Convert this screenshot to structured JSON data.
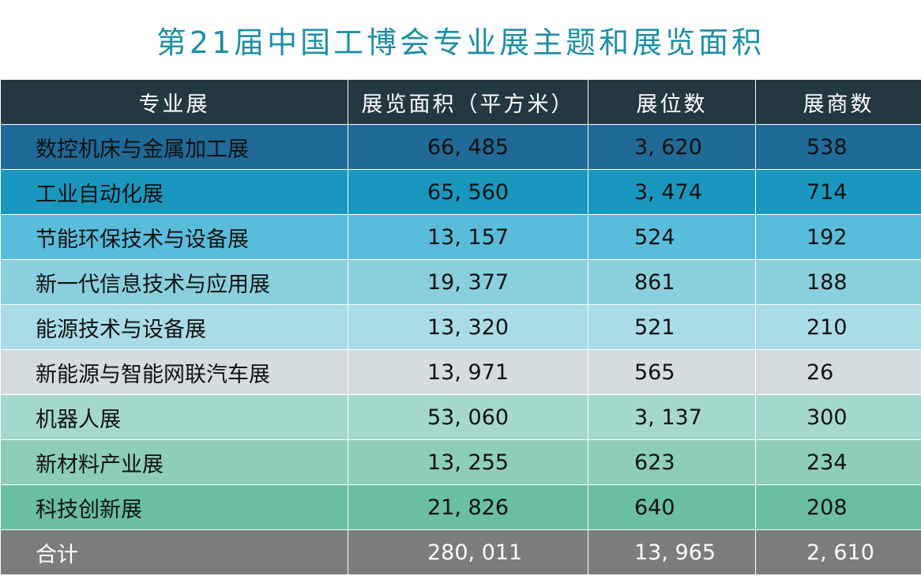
{
  "title": "第21届中国工博会专业展主题和展览面积",
  "headers": [
    "专业展",
    "展览面积（平方米）",
    "展位数",
    "展商数"
  ],
  "rows": [
    {
      "name": "数控机床与金属加工展",
      "area": "66, 485",
      "booths": "3, 620",
      "exhibitors": "538",
      "bg": "#1f6a96"
    },
    {
      "name": "工业自动化展",
      "area": "65, 560",
      "booths": "3, 474",
      "exhibitors": "714",
      "bg": "#1a97be"
    },
    {
      "name": "节能环保技术与设备展",
      "area": "13, 157",
      "booths": "524",
      "exhibitors": "192",
      "bg": "#59bcdb"
    },
    {
      "name": "新一代信息技术与应用展",
      "area": "19, 377",
      "booths": "861",
      "exhibitors": "188",
      "bg": "#8acfdd"
    },
    {
      "name": "能源技术与设备展",
      "area": "13, 320",
      "booths": "521",
      "exhibitors": "210",
      "bg": "#a9dce7"
    },
    {
      "name": "新能源与智能网联汽车展",
      "area": "13, 971",
      "booths": "565",
      "exhibitors": "26",
      "bg": "#d5dcdf"
    },
    {
      "name": "机器人展",
      "area": "53, 060",
      "booths": "3, 137",
      "exhibitors": "300",
      "bg": "#a5d8cc"
    },
    {
      "name": "新材料产业展",
      "area": "13, 255",
      "booths": "623",
      "exhibitors": "234",
      "bg": "#8dcdb9"
    },
    {
      "name": "科技创新展",
      "area": "21, 826",
      "booths": "640",
      "exhibitors": "208",
      "bg": "#69bfa0"
    }
  ],
  "total": {
    "name": "合计",
    "area": "280, 011",
    "booths": "13, 965",
    "exhibitors": "2, 610",
    "bg": "#7c7c7c"
  },
  "colors": {
    "title": "#1e8fa6",
    "header_bg": "#243842"
  }
}
